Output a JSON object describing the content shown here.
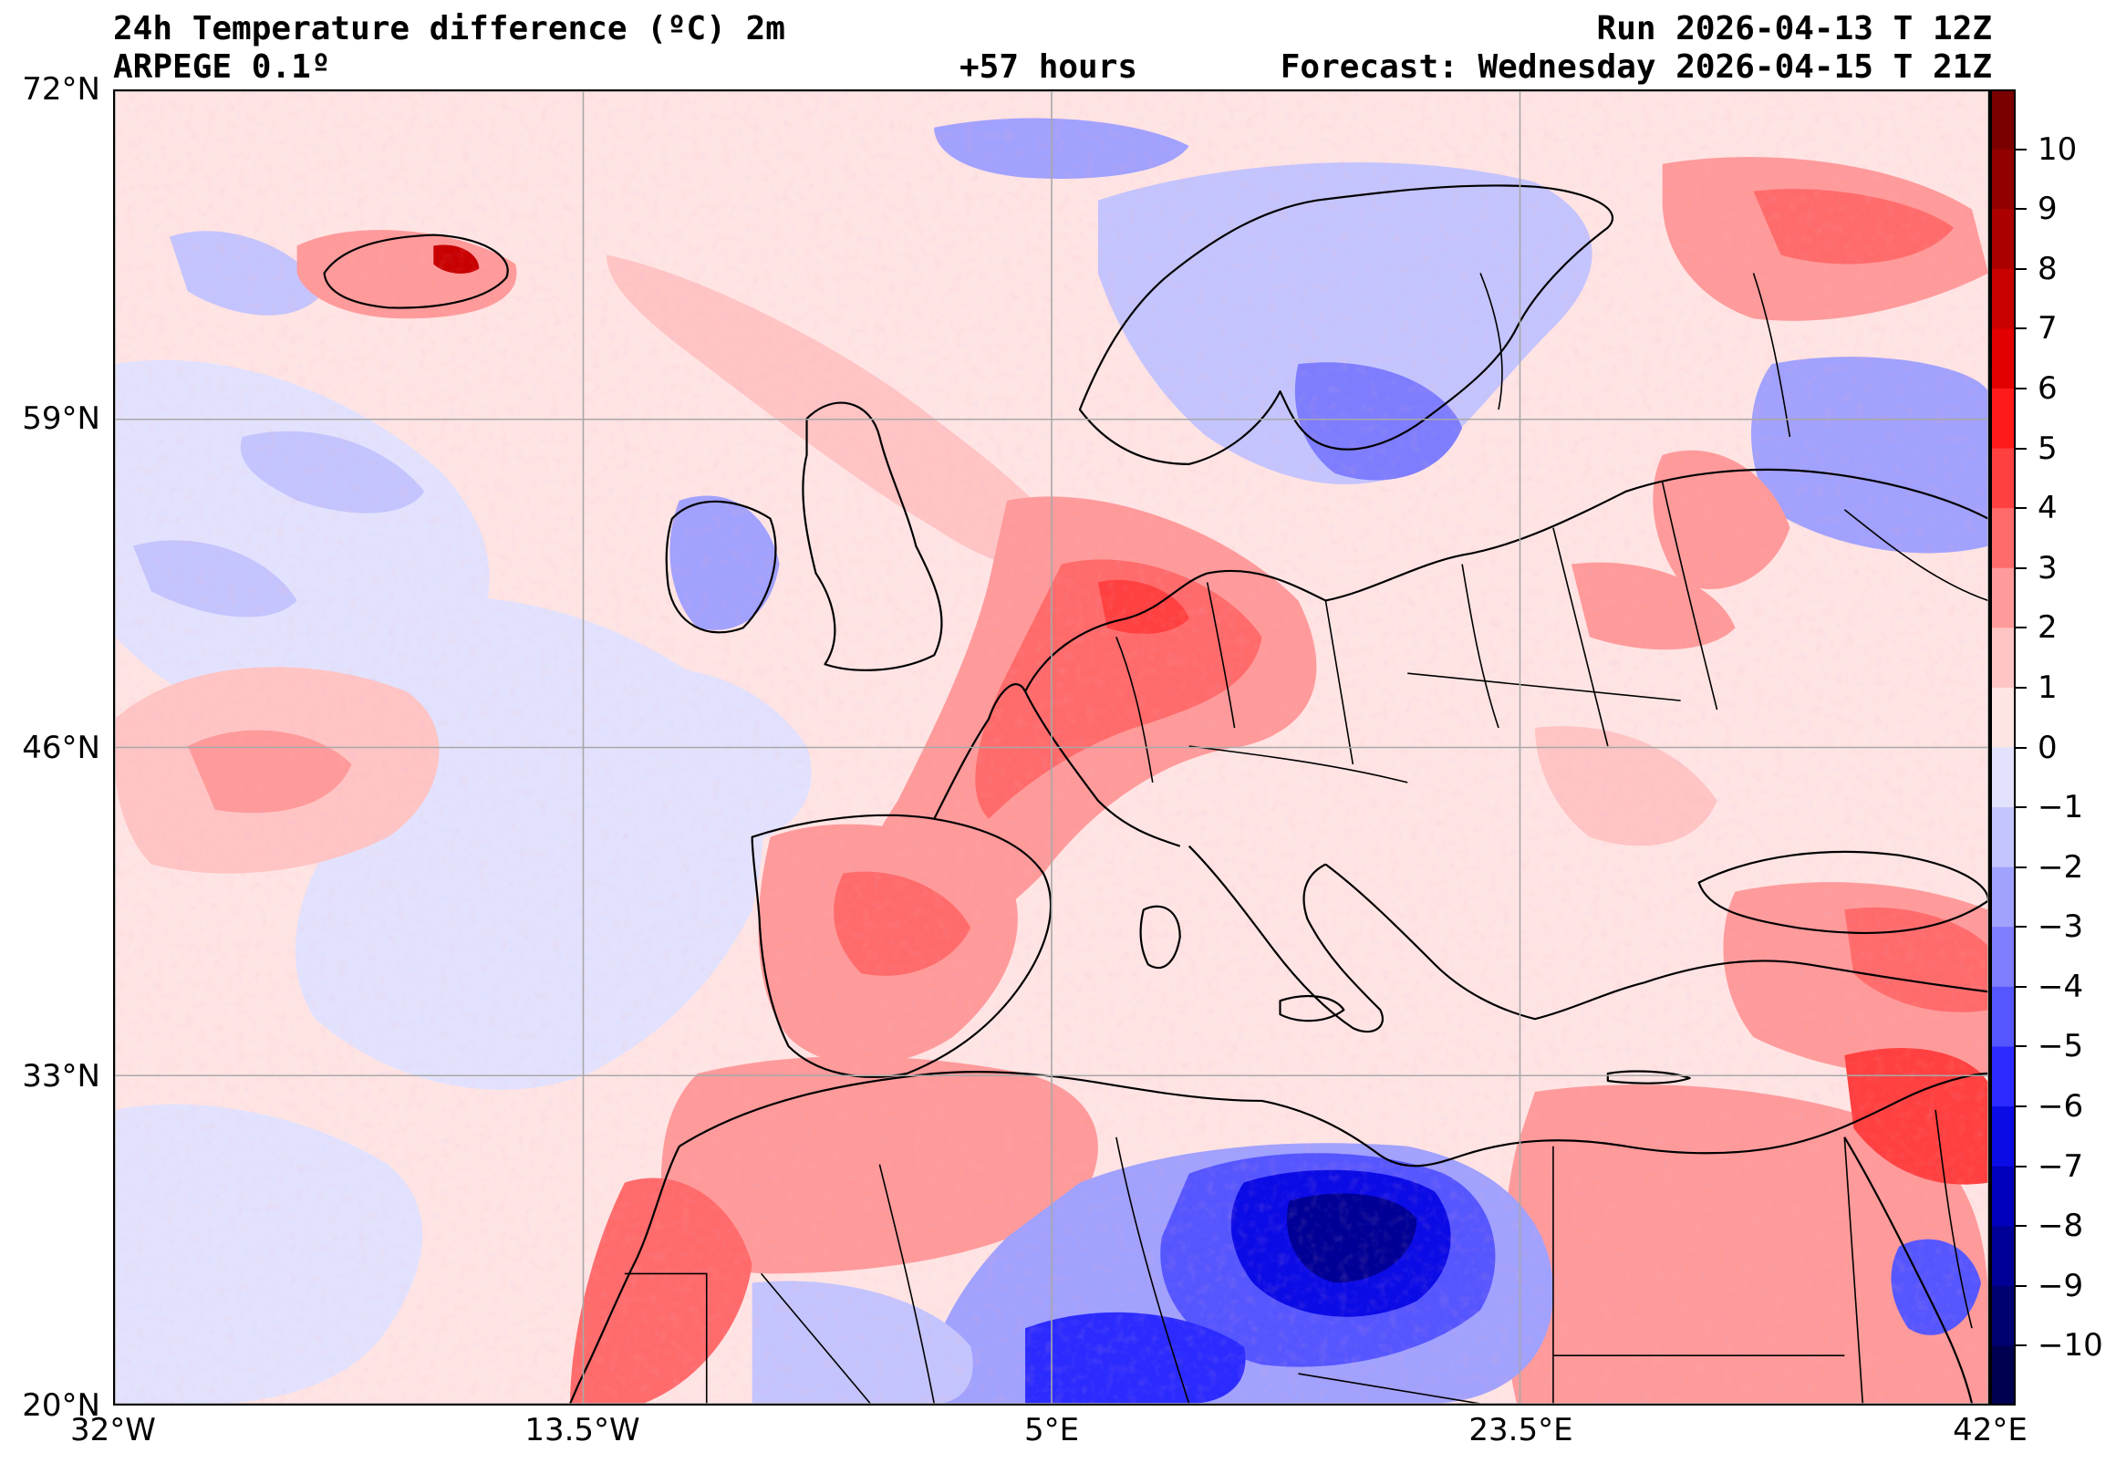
{
  "header": {
    "title": "24h Temperature difference (ºC) 2m",
    "model": "ARPEGE 0.1º",
    "lead": "+57 hours",
    "run": "Run 2026-04-13 T 12Z",
    "forecast": "Forecast: Wednesday 2026-04-15 T 21Z"
  },
  "map": {
    "lat_labels": [
      "72°N",
      "59°N",
      "46°N",
      "33°N",
      "20°N"
    ],
    "lon_labels": [
      "32°W",
      "13.5°W",
      "5°E",
      "23.5°E",
      "42°E"
    ],
    "lat_range": [
      20,
      72
    ],
    "lon_range": [
      -32,
      42
    ],
    "gridlines": true
  },
  "colorbar": {
    "labels": [
      "10",
      "9",
      "8",
      "7",
      "6",
      "5",
      "4",
      "3",
      "2",
      "1",
      "0",
      "−1",
      "−2",
      "−3",
      "−4",
      "−5",
      "−6",
      "−7",
      "−8",
      "−9",
      "−10"
    ],
    "colors": [
      "#7a0000",
      "#920000",
      "#ac0000",
      "#c80000",
      "#e30000",
      "#ff1a1a",
      "#ff4040",
      "#ff6b6b",
      "#ff9a9a",
      "#ffc4c4",
      "#ffe4e4",
      "#e2e2fe",
      "#c4c4fe",
      "#a1a1fe",
      "#7d7dfe",
      "#5656ff",
      "#2b2bff",
      "#0b0be6",
      "#0000bd",
      "#000096",
      "#000070",
      "#000050"
    ]
  }
}
